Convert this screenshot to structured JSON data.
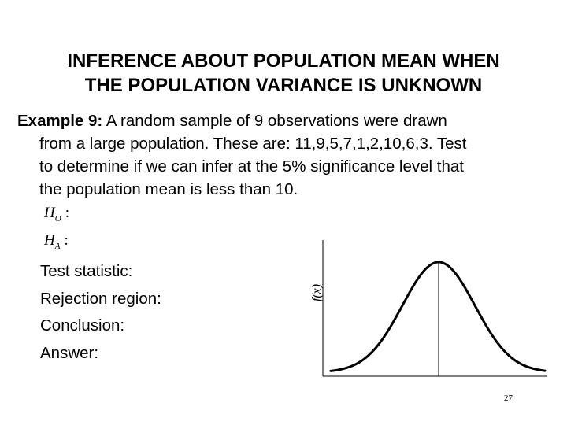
{
  "slide": {
    "title_line1": "INFERENCE ABOUT POPULATION MEAN WHEN",
    "title_line2": "THE POPULATION VARIANCE IS UNKNOWN",
    "example_lead": "Example 9:",
    "example_line1_rest": " A random sample of 9 observations were drawn",
    "example_line2": "from a large population. These are: 11,9,5,7,1,2,10,6,3. Test",
    "example_line3": "to determine if we can infer at the 5% significance level that",
    "example_line4": "the population mean is less than 10.",
    "h0_letter": "H",
    "h0_sub": "O",
    "ha_letter": "H",
    "ha_sub": "A",
    "colon": ":",
    "items": {
      "test_statistic": "Test statistic:",
      "rejection_region": "Rejection region:",
      "conclusion": "Conclusion:",
      "answer": "Answer:"
    },
    "page_number": "27"
  },
  "chart_data": {
    "type": "line",
    "title": "",
    "xlabel": "",
    "ylabel": "f(x)",
    "curve": "normal density (bell curve)",
    "center_marker": "vertical line at the mean",
    "grid": false
  }
}
